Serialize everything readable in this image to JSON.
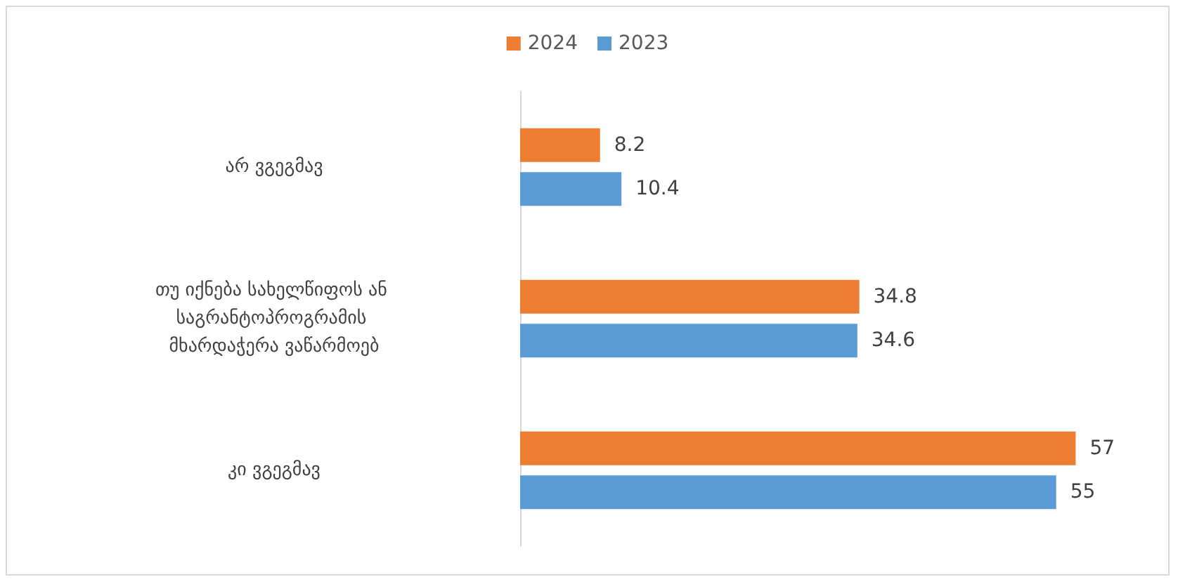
{
  "chart_data": {
    "type": "bar",
    "orientation": "horizontal",
    "data_labels": true,
    "legend": "top",
    "categories": [
      "არ ვგეგმავ",
      "თუ იქნება სახელწიფოს ან საგრანტოპროგრამის მხარდაჭერა ვაწარმოებ",
      "კი ვგეგმავ"
    ],
    "series": [
      {
        "name": "2024",
        "color": "#ed7d31",
        "values": [
          8.2,
          34.8,
          57
        ]
      },
      {
        "name": "2023",
        "color": "#5b9bd5",
        "values": [
          10.4,
          34.6,
          55
        ]
      }
    ]
  }
}
